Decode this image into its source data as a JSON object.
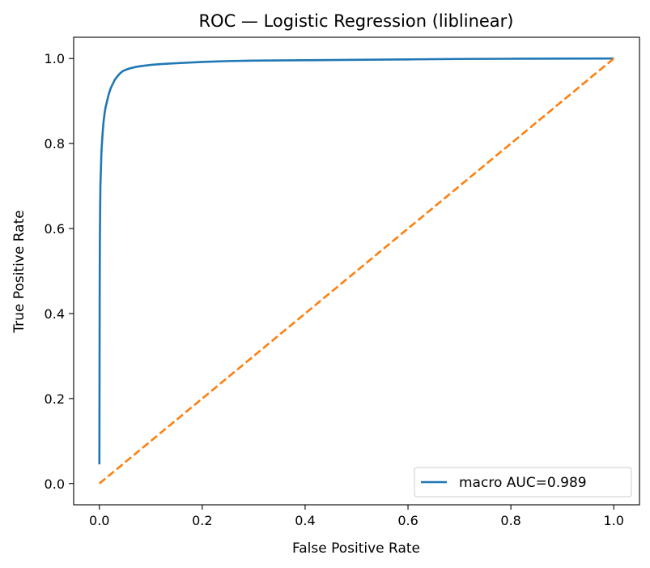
{
  "chart_data": {
    "type": "line",
    "title": "ROC — Logistic Regression (liblinear)",
    "xlabel": "False Positive Rate",
    "ylabel": "True Positive Rate",
    "xlim": [
      -0.05,
      1.05
    ],
    "ylim": [
      -0.05,
      1.05
    ],
    "xticks": [
      0.0,
      0.2,
      0.4,
      0.6,
      0.8,
      1.0
    ],
    "yticks": [
      0.0,
      0.2,
      0.4,
      0.6,
      0.8,
      1.0
    ],
    "xtick_labels": [
      "0.0",
      "0.2",
      "0.4",
      "0.6",
      "0.8",
      "1.0"
    ],
    "ytick_labels": [
      "0.0",
      "0.2",
      "0.4",
      "0.6",
      "0.8",
      "1.0"
    ],
    "grid": false,
    "legend_position": "lower-right",
    "series": [
      {
        "name": "macro AUC=0.989",
        "color": "#1f77b4",
        "style": "solid",
        "x": [
          0.0,
          0.0003,
          0.0006,
          0.001,
          0.0015,
          0.002,
          0.003,
          0.004,
          0.005,
          0.006,
          0.008,
          0.01,
          0.012,
          0.015,
          0.018,
          0.022,
          0.026,
          0.03,
          0.035,
          0.04,
          0.045,
          0.05,
          0.06,
          0.07,
          0.08,
          0.1,
          0.12,
          0.15,
          0.2,
          0.25,
          0.3,
          0.4,
          0.5,
          0.6,
          0.7,
          0.8,
          0.9,
          1.0
        ],
        "y": [
          0.045,
          0.25,
          0.45,
          0.58,
          0.65,
          0.7,
          0.74,
          0.78,
          0.8,
          0.82,
          0.85,
          0.87,
          0.885,
          0.9,
          0.915,
          0.93,
          0.94,
          0.95,
          0.958,
          0.965,
          0.97,
          0.973,
          0.977,
          0.98,
          0.982,
          0.985,
          0.987,
          0.989,
          0.992,
          0.994,
          0.995,
          0.996,
          0.997,
          0.998,
          0.999,
          0.9995,
          0.9998,
          1.0
        ]
      },
      {
        "color": "#ff7f0e",
        "style": "dashed",
        "x": [
          0.0,
          1.0
        ],
        "y": [
          0.0,
          1.0
        ]
      }
    ]
  }
}
